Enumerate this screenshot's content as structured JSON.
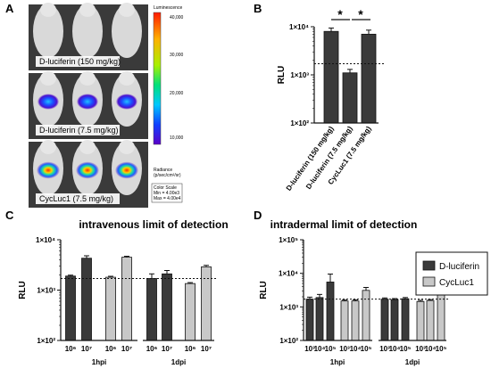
{
  "panels": {
    "a": "A",
    "b": "B",
    "c": "C",
    "d": "D"
  },
  "panel_a": {
    "rows": [
      {
        "label": "D-luciferin (150 mg/kg)",
        "signal": 0.0
      },
      {
        "label": "D-luciferin (7.5 mg/kg)",
        "signal": 0.35
      },
      {
        "label": "CycLuc1 (7.5 mg/kg)",
        "signal": 0.55
      }
    ],
    "colorbar": {
      "title": "Luminescence",
      "ticks": [
        "40,000",
        "30,000",
        "20,000",
        "10,000"
      ],
      "unit_title": "Radiance",
      "unit": "(p/sec/cm²/sr)",
      "scale_title": "Color Scale",
      "scale_min": "Min = 4.00e3",
      "scale_max": "Max = 4.00e4"
    }
  },
  "colors": {
    "dluc": "#3a3a3a",
    "cyc": "#c8c8c8",
    "bar_edge": "#111111"
  },
  "chart_data": [
    {
      "id": "B",
      "type": "bar",
      "title": "",
      "ylabel": "RLU",
      "yscale": "log",
      "ylim": [
        100,
        10000
      ],
      "yticks": [
        "1×10²",
        "1×10³",
        "1×10⁴"
      ],
      "categories": [
        "D-luciferin (150 mg/kg)",
        "D-luciferin (7.5 mg/kg)",
        "CycLuc1 (7.5 mg/kg)"
      ],
      "values": [
        8000,
        1100,
        7000
      ],
      "errors": [
        1400,
        200,
        1500
      ],
      "bar_colors": [
        "#3a3a3a",
        "#3a3a3a",
        "#3a3a3a"
      ],
      "limit_of_detection": 1700,
      "significance": [
        "*",
        "*"
      ]
    },
    {
      "id": "C",
      "type": "bar",
      "title": "intravenous limit of detection",
      "ylabel": "RLU",
      "yscale": "log",
      "ylim": [
        100,
        10000
      ],
      "yticks": [
        "1×10²",
        "1×10³",
        "1×10⁴"
      ],
      "groups": [
        "1hpi",
        "1dpi"
      ],
      "categories": [
        "10⁶",
        "10⁷",
        "10⁶",
        "10⁷",
        "10⁶",
        "10⁷",
        "10⁶",
        "10⁷"
      ],
      "series_index": [
        0,
        0,
        1,
        1,
        0,
        0,
        1,
        1
      ],
      "values": [
        1900,
        4300,
        1800,
        4500,
        1700,
        2100,
        1350,
        2900
      ],
      "errors": [
        80,
        500,
        80,
        200,
        400,
        350,
        60,
        200
      ],
      "limit_of_detection": 1700
    },
    {
      "id": "D",
      "type": "bar",
      "title": "intradermal limit of detection",
      "ylabel": "RLU",
      "yscale": "log",
      "ylim": [
        100,
        100000
      ],
      "yticks": [
        "1×10²",
        "1×10³",
        "1×10⁴",
        "1×10⁵"
      ],
      "groups": [
        "1hpi",
        "1dpi"
      ],
      "categories": [
        "10³",
        "10⁴",
        "10⁵",
        "10³",
        "10⁴",
        "10⁵",
        "10³",
        "10⁴",
        "10⁵",
        "10³",
        "10⁴",
        "10⁵"
      ],
      "series_index": [
        0,
        0,
        0,
        1,
        1,
        1,
        0,
        0,
        0,
        1,
        1,
        1
      ],
      "values": [
        1700,
        1900,
        5500,
        1500,
        1500,
        3100,
        1700,
        1650,
        1750,
        1450,
        1550,
        2300
      ],
      "errors": [
        250,
        450,
        4000,
        100,
        120,
        700,
        150,
        120,
        150,
        120,
        100,
        250
      ],
      "limit_of_detection": 1700
    }
  ],
  "legend": {
    "series": [
      "D-luciferin",
      "CycLuc1"
    ]
  }
}
